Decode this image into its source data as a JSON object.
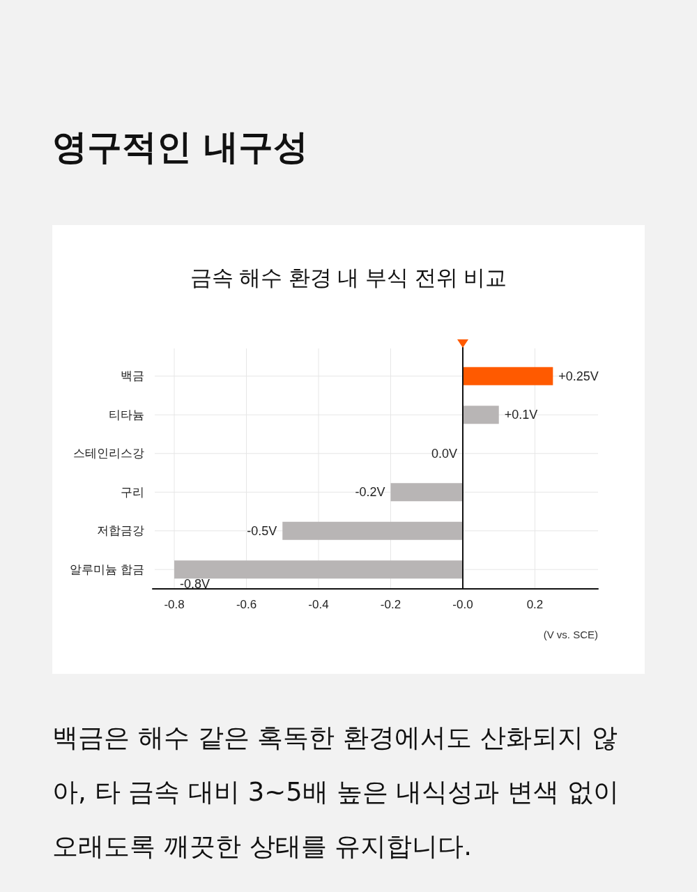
{
  "chart_data": {
    "type": "bar",
    "orientation": "horizontal",
    "title": "금속 해수 환경 내 부식 전위 비교",
    "xlabel": "(V vs. SCE)",
    "annotations": [
      "영구적인 내구성",
      "백금은 해수 같은 혹독한 환경에서도 산화되지 않아, 타 금속 대비 3~5배 높은 내식성과 변색 없이 오래도록 깨끗한 상태를 유지합니다."
    ],
    "categories": [
      "백금",
      "티타늄",
      "스테인리스강",
      "구리",
      "저합금강",
      "알루미늄 합금"
    ],
    "values": [
      0.25,
      0.1,
      0.0,
      -0.2,
      -0.5,
      -0.8
    ],
    "value_labels": [
      "+0.25V",
      "+0.1V",
      "0.0V",
      "-0.2V",
      "-0.5V",
      "-0.8V"
    ],
    "colors": [
      "#ff5a00",
      "#b8b5b5",
      "#b8b5b5",
      "#b8b5b5",
      "#b8b5b5",
      "#b8b5b5"
    ],
    "xlim": [
      -0.86,
      0.375
    ],
    "xticks": [
      -0.8,
      -0.6,
      -0.4,
      -0.2,
      {
        "value": 0,
        "label": "-0.0"
      },
      0.2
    ],
    "ref_lines": [
      {
        "axis": "x",
        "value": 0,
        "color": "#111111"
      }
    ],
    "grid": true
  }
}
